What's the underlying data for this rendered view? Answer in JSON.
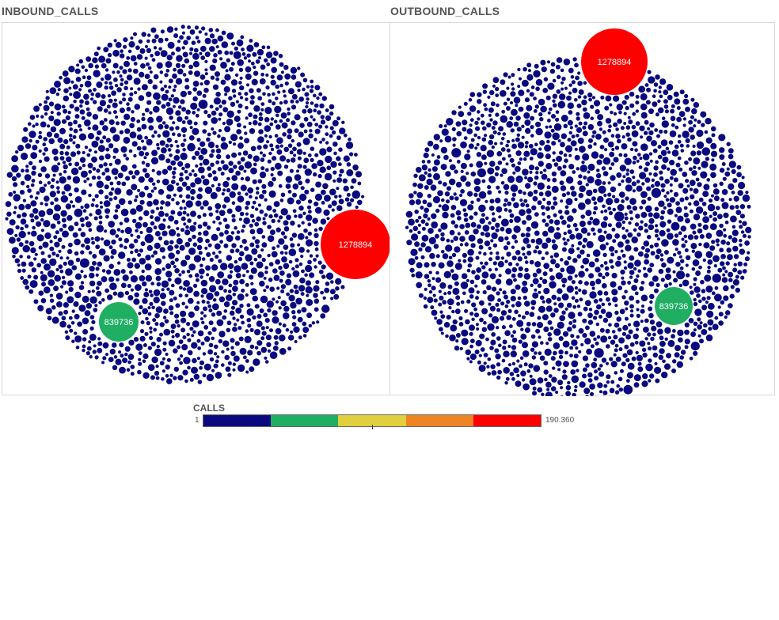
{
  "chart_data": [
    {
      "type": "packed-bubble",
      "title": "INBOUND_CALLS",
      "bubble_color": "#0a0a80",
      "highlights": [
        {
          "label": "1278894",
          "color": "#ff0000"
        },
        {
          "label": "839736",
          "color": "#1fae62"
        }
      ]
    },
    {
      "type": "packed-bubble",
      "title": "OUTBOUND_CALLS",
      "bubble_color": "#0a0a80",
      "highlights": [
        {
          "label": "1278894",
          "color": "#ff0000"
        },
        {
          "label": "839736",
          "color": "#1fae62"
        }
      ]
    }
  ],
  "legend": {
    "title": "CALLS",
    "min_label": "1",
    "max_label": "190.360",
    "colors": [
      "#0a0a80",
      "#1fae62",
      "#e0cf3e",
      "#ef8425",
      "#ff0000"
    ]
  }
}
